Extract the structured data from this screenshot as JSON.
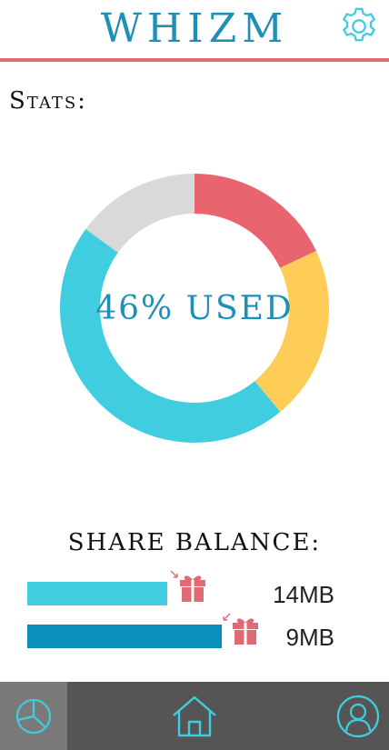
{
  "header": {
    "title": "WHIZM",
    "settings_icon": "gear-icon"
  },
  "stats": {
    "label": "Stats:"
  },
  "usage": {
    "center_text": "46% USED",
    "segments": [
      {
        "name": "red",
        "value": 18,
        "color": "#e8646f"
      },
      {
        "name": "yellow",
        "value": 21,
        "color": "#fecd57"
      },
      {
        "name": "cyan",
        "value": 46,
        "color": "#41cde0"
      },
      {
        "name": "grey",
        "value": 15,
        "color": "#d9d9d9"
      }
    ]
  },
  "share_balance": {
    "title": "SHARE BALANCE:",
    "rows": [
      {
        "value": "14MB",
        "fill": 0.64,
        "color": "#41cde0",
        "icon": "gift-icon"
      },
      {
        "value": "9MB",
        "fill": 0.89,
        "color": "#0a8fbb",
        "icon": "gift-icon"
      }
    ]
  },
  "nav": {
    "items": [
      {
        "name": "stats",
        "icon": "pie-chart-icon",
        "active": true
      },
      {
        "name": "home",
        "icon": "home-icon",
        "active": false
      },
      {
        "name": "profile",
        "icon": "user-icon",
        "active": false
      }
    ]
  },
  "colors": {
    "accent": "#1e8fb7",
    "rule": "#e06a73",
    "nav_bg": "#555555",
    "gift": "#e06a73"
  }
}
